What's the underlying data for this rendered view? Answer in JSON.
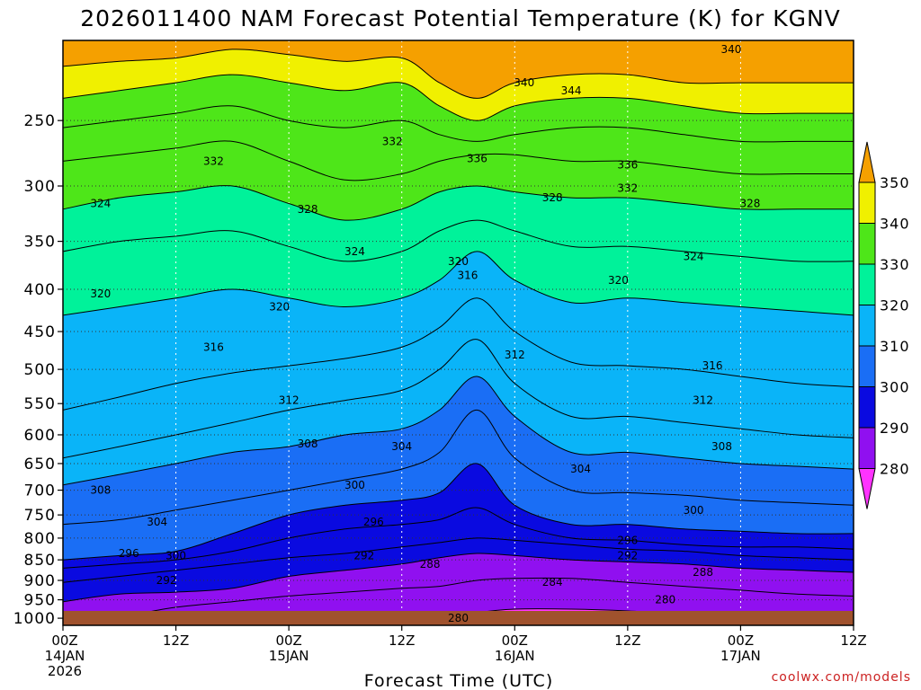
{
  "chart_data": {
    "type": "heatmap",
    "title": "2026011400 NAM Forecast Potential Temperature (K) for KGNV",
    "xlabel": "Forecast Time (UTC)",
    "ylabel": "",
    "credit": "coolwx.com/models",
    "x_ticks": [
      {
        "hour": 0,
        "lines": [
          "00Z",
          "14JAN",
          "2026"
        ]
      },
      {
        "hour": 12,
        "lines": [
          "12Z"
        ]
      },
      {
        "hour": 24,
        "lines": [
          "00Z",
          "15JAN"
        ]
      },
      {
        "hour": 36,
        "lines": [
          "12Z"
        ]
      },
      {
        "hour": 48,
        "lines": [
          "00Z",
          "16JAN"
        ]
      },
      {
        "hour": 60,
        "lines": [
          "12Z"
        ]
      },
      {
        "hour": 72,
        "lines": [
          "00Z",
          "17JAN"
        ]
      },
      {
        "hour": 84,
        "lines": [
          "12Z"
        ]
      }
    ],
    "xlim": [
      0,
      84
    ],
    "y_pressure_levels": [
      250,
      300,
      350,
      400,
      450,
      500,
      550,
      600,
      650,
      700,
      750,
      800,
      850,
      900,
      950,
      1000
    ],
    "ylim": [
      1020,
      200
    ],
    "y_scale": "log-pressure",
    "colorbar": {
      "levels": [
        280,
        290,
        300,
        310,
        320,
        330,
        340,
        350
      ],
      "colors": {
        "below_280": "#ff33ff",
        "280_290": "#9010f0",
        "290_300": "#0a0ae0",
        "300_310": "#1a6ef5",
        "310_320": "#0ab4f8",
        "320_330": "#00f29a",
        "330_340": "#4ee619",
        "340_350": "#f0f000",
        "above_350": "#f5a000"
      }
    },
    "contour_interval": 4,
    "series": [
      {
        "theta": 280,
        "p": [
          1005,
          1005,
          1005,
          1005,
          1005,
          1005,
          1005,
          1005,
          985,
          975,
          975,
          980,
          990,
          1000,
          1005,
          1005
        ]
      },
      {
        "theta": 284,
        "p": [
          1000,
          995,
          970,
          955,
          940,
          930,
          920,
          915,
          900,
          895,
          895,
          905,
          915,
          925,
          935,
          940
        ]
      },
      {
        "theta": 288,
        "p": [
          955,
          935,
          930,
          920,
          890,
          875,
          860,
          845,
          835,
          840,
          850,
          855,
          860,
          870,
          875,
          880
        ]
      },
      {
        "theta": 292,
        "p": [
          905,
          890,
          875,
          860,
          845,
          835,
          820,
          810,
          800,
          805,
          815,
          825,
          830,
          840,
          845,
          850
        ]
      },
      {
        "theta": 296,
        "p": [
          870,
          860,
          850,
          830,
          800,
          780,
          770,
          760,
          735,
          770,
          800,
          805,
          815,
          820,
          820,
          825
        ]
      },
      {
        "theta": 300,
        "p": [
          850,
          840,
          830,
          790,
          750,
          730,
          720,
          705,
          650,
          730,
          770,
          770,
          780,
          785,
          790,
          790
        ]
      },
      {
        "theta": 304,
        "p": [
          770,
          760,
          740,
          720,
          700,
          680,
          660,
          630,
          560,
          640,
          700,
          705,
          710,
          720,
          725,
          730
        ]
      },
      {
        "theta": 308,
        "p": [
          690,
          670,
          650,
          630,
          620,
          600,
          590,
          560,
          510,
          570,
          630,
          630,
          640,
          650,
          655,
          660
        ]
      },
      {
        "theta": 312,
        "p": [
          640,
          620,
          600,
          580,
          560,
          545,
          530,
          500,
          460,
          520,
          570,
          570,
          580,
          590,
          600,
          605
        ]
      },
      {
        "theta": 316,
        "p": [
          560,
          540,
          520,
          505,
          495,
          485,
          470,
          445,
          410,
          450,
          490,
          495,
          500,
          510,
          520,
          525
        ]
      },
      {
        "theta": 320,
        "p": [
          430,
          420,
          410,
          400,
          410,
          420,
          410,
          390,
          360,
          390,
          415,
          410,
          415,
          420,
          425,
          430
        ]
      },
      {
        "theta": 324,
        "p": [
          360,
          350,
          345,
          340,
          355,
          370,
          360,
          340,
          330,
          340,
          355,
          355,
          360,
          365,
          370,
          370
        ]
      },
      {
        "theta": 328,
        "p": [
          320,
          310,
          305,
          300,
          315,
          330,
          320,
          305,
          300,
          305,
          310,
          310,
          315,
          320,
          320,
          320
        ]
      },
      {
        "theta": 332,
        "p": [
          280,
          275,
          270,
          265,
          280,
          295,
          290,
          280,
          275,
          275,
          280,
          280,
          285,
          290,
          290,
          290
        ]
      },
      {
        "theta": 336,
        "p": [
          255,
          250,
          245,
          240,
          250,
          255,
          250,
          260,
          265,
          260,
          255,
          255,
          260,
          265,
          265,
          265
        ]
      },
      {
        "theta": 340,
        "p": [
          235,
          230,
          225,
          220,
          225,
          230,
          225,
          240,
          250,
          240,
          235,
          235,
          240,
          245,
          245,
          245
        ]
      },
      {
        "theta": 344,
        "p": [
          215,
          212,
          210,
          205,
          208,
          212,
          210,
          225,
          235,
          225,
          220,
          220,
          225,
          225,
          225,
          225
        ]
      }
    ],
    "series_hours": [
      0,
      6,
      12,
      18,
      24,
      30,
      36,
      40,
      44,
      48,
      54,
      60,
      66,
      72,
      78,
      84
    ],
    "contour_labels": [
      {
        "text": "280",
        "hour": 42,
        "p": 1000
      },
      {
        "text": "280",
        "hour": 64,
        "p": 950
      },
      {
        "text": "284",
        "hour": 52,
        "p": 905
      },
      {
        "text": "288",
        "hour": 39,
        "p": 860
      },
      {
        "text": "288",
        "hour": 68,
        "p": 880
      },
      {
        "text": "292",
        "hour": 11,
        "p": 900
      },
      {
        "text": "292",
        "hour": 32,
        "p": 840
      },
      {
        "text": "292",
        "hour": 60,
        "p": 840
      },
      {
        "text": "296",
        "hour": 7,
        "p": 835
      },
      {
        "text": "296",
        "hour": 33,
        "p": 765
      },
      {
        "text": "296",
        "hour": 60,
        "p": 805
      },
      {
        "text": "300",
        "hour": 12,
        "p": 840
      },
      {
        "text": "300",
        "hour": 31,
        "p": 690
      },
      {
        "text": "300",
        "hour": 67,
        "p": 740
      },
      {
        "text": "304",
        "hour": 10,
        "p": 765
      },
      {
        "text": "304",
        "hour": 36,
        "p": 620
      },
      {
        "text": "304",
        "hour": 55,
        "p": 660
      },
      {
        "text": "308",
        "hour": 4,
        "p": 700
      },
      {
        "text": "308",
        "hour": 26,
        "p": 615
      },
      {
        "text": "308",
        "hour": 70,
        "p": 620
      },
      {
        "text": "312",
        "hour": 24,
        "p": 545
      },
      {
        "text": "312",
        "hour": 48,
        "p": 480
      },
      {
        "text": "312",
        "hour": 68,
        "p": 545
      },
      {
        "text": "316",
        "hour": 16,
        "p": 470
      },
      {
        "text": "316",
        "hour": 43,
        "p": 385
      },
      {
        "text": "316",
        "hour": 69,
        "p": 495
      },
      {
        "text": "320",
        "hour": 4,
        "p": 405
      },
      {
        "text": "320",
        "hour": 23,
        "p": 420
      },
      {
        "text": "320",
        "hour": 42,
        "p": 370
      },
      {
        "text": "320",
        "hour": 59,
        "p": 390
      },
      {
        "text": "324",
        "hour": 4,
        "p": 315
      },
      {
        "text": "324",
        "hour": 31,
        "p": 360
      },
      {
        "text": "324",
        "hour": 67,
        "p": 365
      },
      {
        "text": "328",
        "hour": 26,
        "p": 320
      },
      {
        "text": "328",
        "hour": 52,
        "p": 310
      },
      {
        "text": "328",
        "hour": 73,
        "p": 315
      },
      {
        "text": "332",
        "hour": 16,
        "p": 280
      },
      {
        "text": "332",
        "hour": 35,
        "p": 265
      },
      {
        "text": "332",
        "hour": 60,
        "p": 302
      },
      {
        "text": "336",
        "hour": 44,
        "p": 278
      },
      {
        "text": "336",
        "hour": 60,
        "p": 283
      },
      {
        "text": "340",
        "hour": 49,
        "p": 225
      },
      {
        "text": "340",
        "hour": 71,
        "p": 205
      },
      {
        "text": "344",
        "hour": 54,
        "p": 230
      }
    ]
  }
}
